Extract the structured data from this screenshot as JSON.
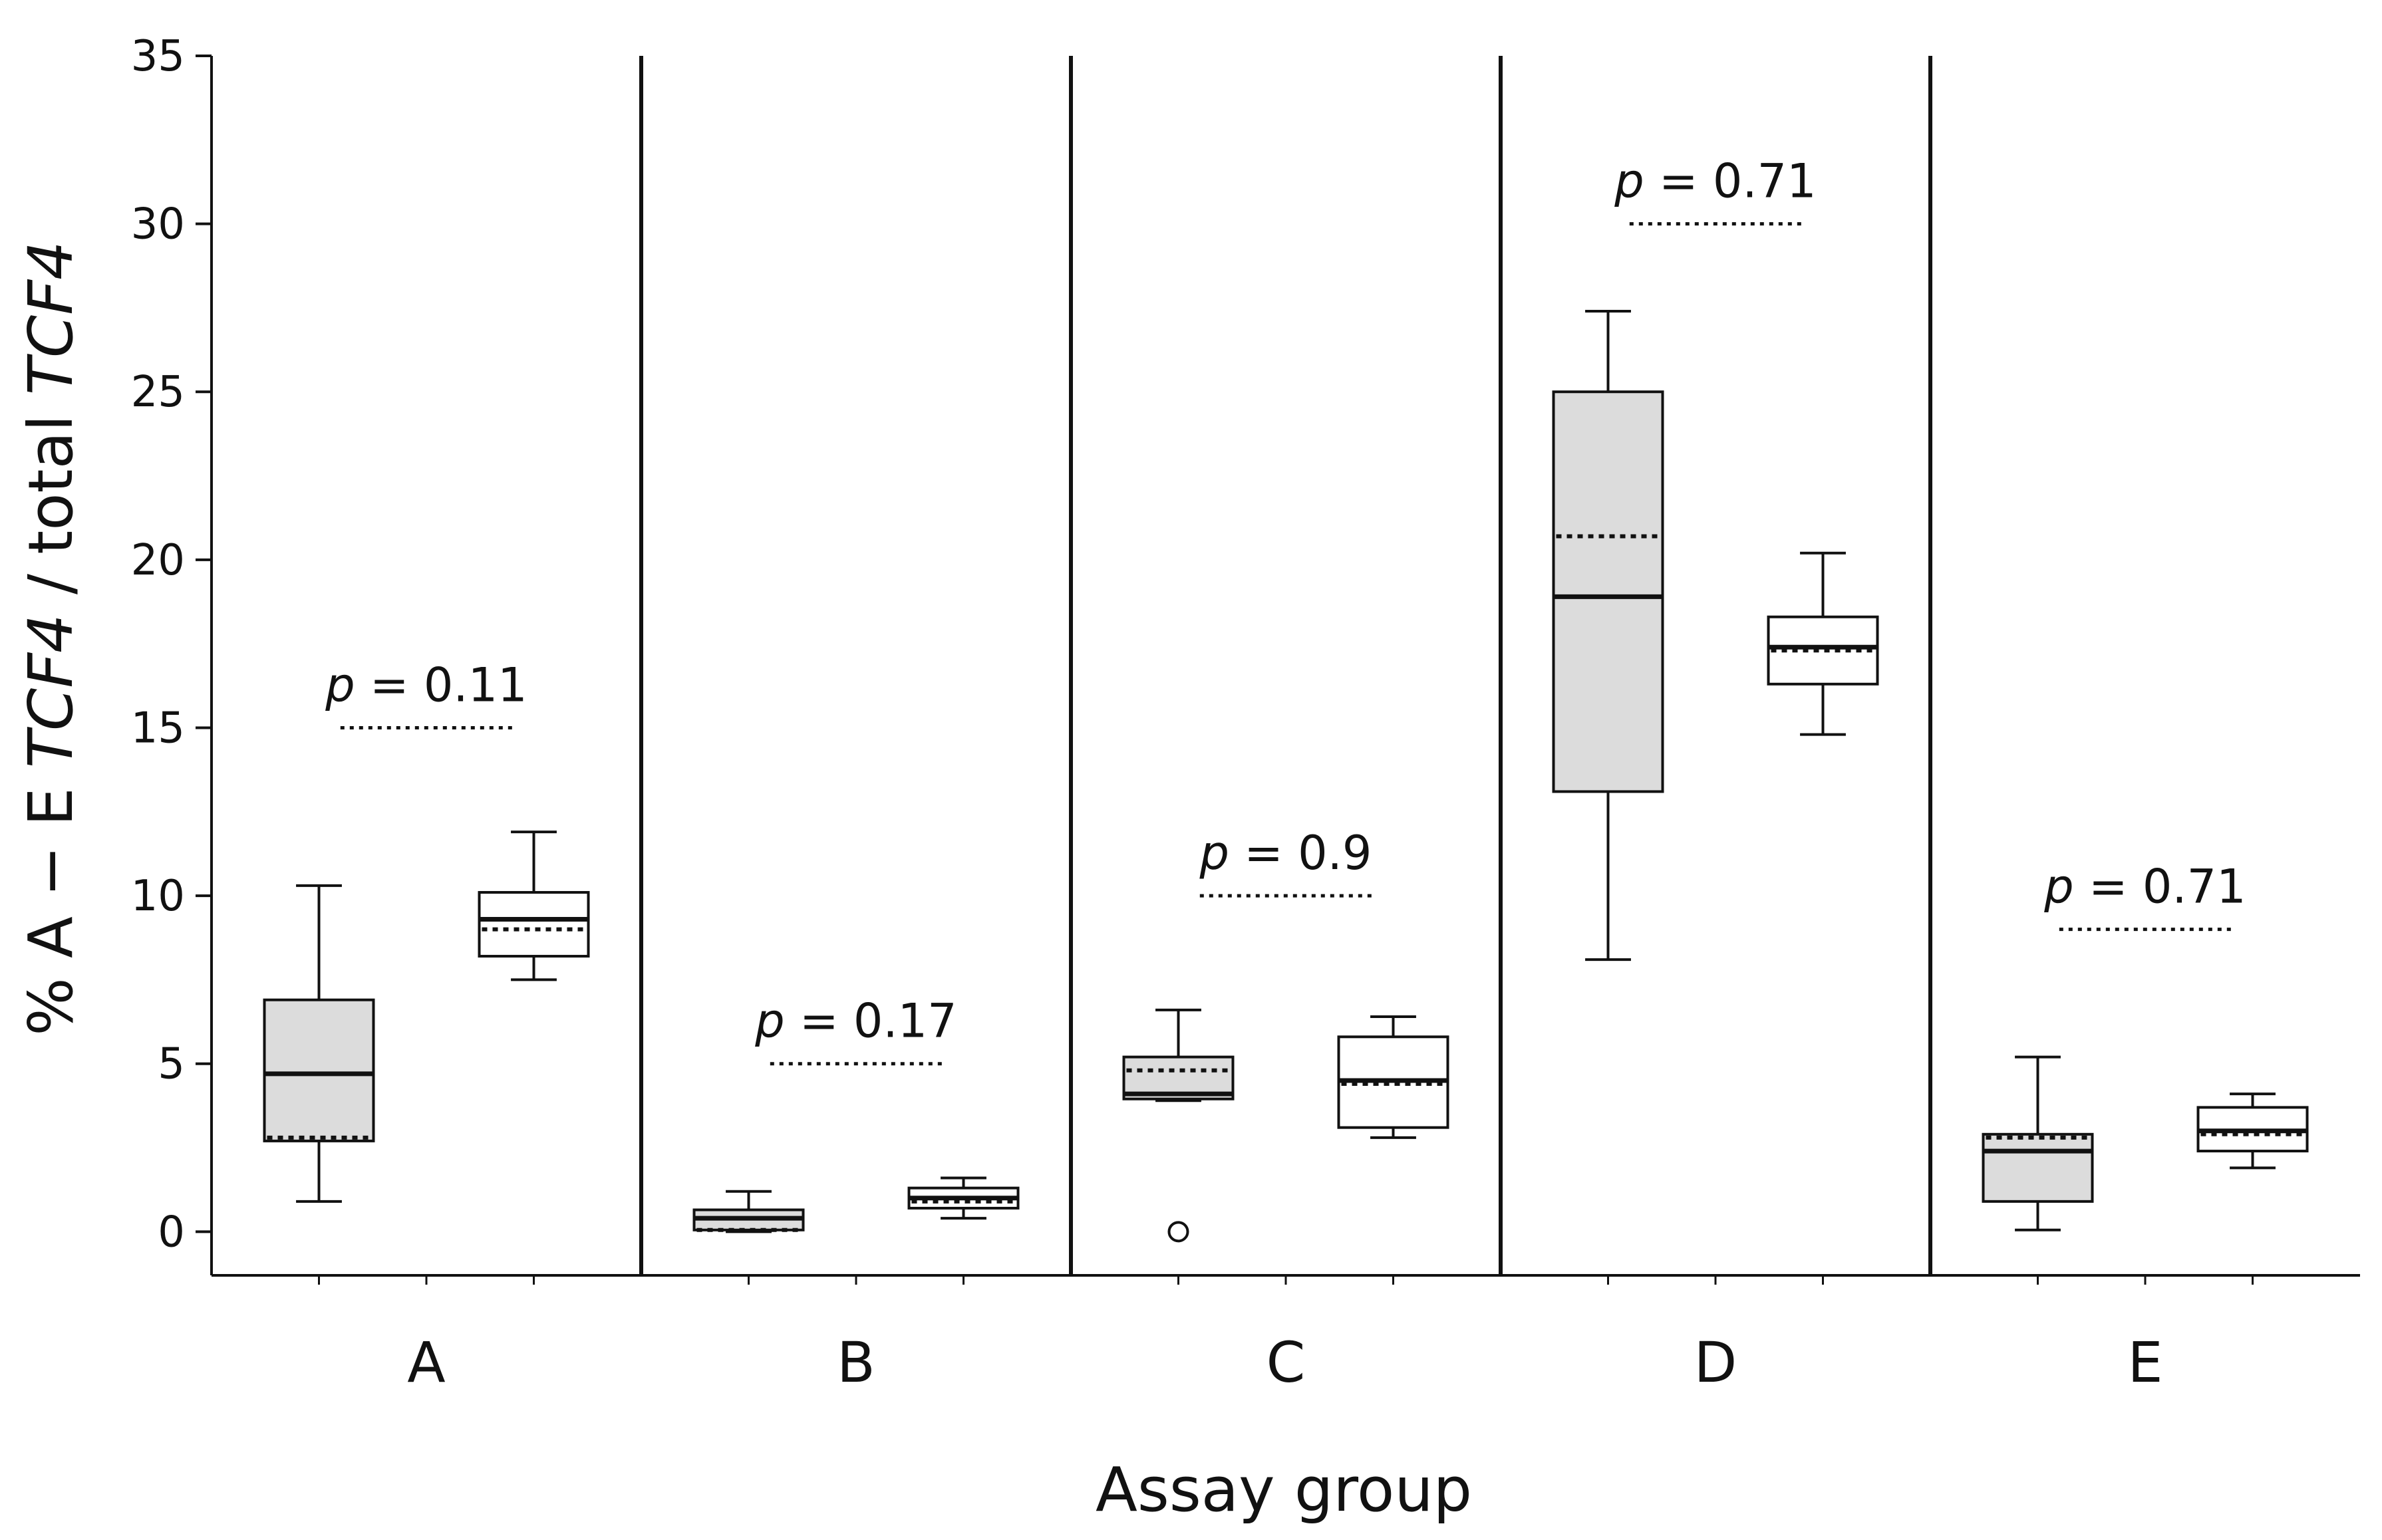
{
  "chart_data": {
    "type": "boxplot",
    "xlabel": "Assay group",
    "ylabel": {
      "parts": [
        {
          "text": "% A − E ",
          "italic": false
        },
        {
          "text": "TCF4",
          "italic": true
        },
        {
          "text": " / total ",
          "italic": false
        },
        {
          "text": "TCF4",
          "italic": true
        }
      ]
    },
    "ylim": [
      -1.3,
      35
    ],
    "yticks": [
      0,
      5,
      10,
      15,
      20,
      25,
      30,
      35
    ],
    "colors": {
      "shaded": "#dcdcdc",
      "open": "#ffffff",
      "line": "#111111"
    },
    "groups": [
      {
        "label": "A",
        "p_label": "p",
        "p_value": "= 0.11",
        "p_line_y": 15,
        "boxes": [
          {
            "fill": "shaded",
            "whisker_low": 0.9,
            "q1": 2.7,
            "median": 4.7,
            "mean": 2.8,
            "q3": 6.9,
            "whisker_high": 10.3,
            "outliers": []
          },
          {
            "fill": "open",
            "whisker_low": 7.5,
            "q1": 8.2,
            "median": 9.3,
            "mean": 9.0,
            "q3": 10.1,
            "whisker_high": 11.9,
            "outliers": []
          }
        ]
      },
      {
        "label": "B",
        "p_label": "p",
        "p_value": "= 0.17",
        "p_line_y": 5,
        "boxes": [
          {
            "fill": "shaded",
            "whisker_low": 0.0,
            "q1": 0.05,
            "median": 0.4,
            "mean": 0.05,
            "q3": 0.65,
            "whisker_high": 1.2,
            "outliers": []
          },
          {
            "fill": "open",
            "whisker_low": 0.4,
            "q1": 0.7,
            "median": 1.0,
            "mean": 0.9,
            "q3": 1.3,
            "whisker_high": 1.6,
            "outliers": []
          }
        ]
      },
      {
        "label": "C",
        "p_label": "p",
        "p_value": "= 0.9",
        "p_line_y": 10,
        "boxes": [
          {
            "fill": "shaded",
            "whisker_low": 3.9,
            "q1": 3.95,
            "median": 4.1,
            "mean": 4.8,
            "q3": 5.2,
            "whisker_high": 6.6,
            "outliers": [
              0.0
            ]
          },
          {
            "fill": "open",
            "whisker_low": 2.8,
            "q1": 3.1,
            "median": 4.5,
            "mean": 4.4,
            "q3": 5.8,
            "whisker_high": 6.4,
            "outliers": []
          }
        ]
      },
      {
        "label": "D",
        "p_label": "p",
        "p_value": "= 0.71",
        "p_line_y": 30,
        "boxes": [
          {
            "fill": "shaded",
            "whisker_low": 8.1,
            "q1": 13.1,
            "median": 18.9,
            "mean": 20.7,
            "q3": 25.0,
            "whisker_high": 27.4,
            "outliers": []
          },
          {
            "fill": "open",
            "whisker_low": 14.8,
            "q1": 16.3,
            "median": 17.4,
            "mean": 17.3,
            "q3": 18.3,
            "whisker_high": 20.2,
            "outliers": []
          }
        ]
      },
      {
        "label": "E",
        "p_label": "p",
        "p_value": "= 0.71",
        "p_line_y": 9,
        "boxes": [
          {
            "fill": "shaded",
            "whisker_low": 0.05,
            "q1": 0.9,
            "median": 2.4,
            "mean": 2.8,
            "q3": 2.9,
            "whisker_high": 5.2,
            "outliers": []
          },
          {
            "fill": "open",
            "whisker_low": 1.9,
            "q1": 2.4,
            "median": 3.0,
            "mean": 2.9,
            "q3": 3.7,
            "whisker_high": 4.1,
            "outliers": []
          }
        ]
      }
    ]
  }
}
